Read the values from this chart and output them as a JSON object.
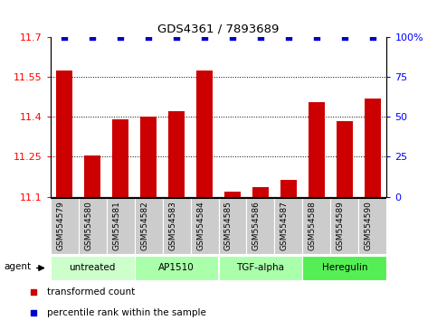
{
  "title": "GDS4361 / 7893689",
  "samples": [
    "GSM554579",
    "GSM554580",
    "GSM554581",
    "GSM554582",
    "GSM554583",
    "GSM554584",
    "GSM554585",
    "GSM554586",
    "GSM554587",
    "GSM554588",
    "GSM554589",
    "GSM554590"
  ],
  "bar_values": [
    11.575,
    11.255,
    11.39,
    11.4,
    11.42,
    11.575,
    11.12,
    11.135,
    11.165,
    11.455,
    11.385,
    11.47
  ],
  "percentile_values": [
    100,
    100,
    100,
    100,
    100,
    100,
    100,
    100,
    100,
    100,
    100,
    100
  ],
  "bar_color": "#cc0000",
  "percentile_color": "#0000cc",
  "ylim_left": [
    11.1,
    11.7
  ],
  "ylim_right": [
    0,
    100
  ],
  "yticks_left": [
    11.1,
    11.25,
    11.4,
    11.55,
    11.7
  ],
  "ytick_labels_left": [
    "11.1",
    "11.25",
    "11.4",
    "11.55",
    "11.7"
  ],
  "yticks_right": [
    0,
    25,
    50,
    75,
    100
  ],
  "ytick_labels_right": [
    "0",
    "25",
    "50",
    "75",
    "100%"
  ],
  "groups": [
    {
      "label": "untreated",
      "start": 0,
      "end": 3,
      "color": "#ccffcc"
    },
    {
      "label": "AP1510",
      "start": 3,
      "end": 6,
      "color": "#aaffaa"
    },
    {
      "label": "TGF-alpha",
      "start": 6,
      "end": 9,
      "color": "#aaffaa"
    },
    {
      "label": "Heregulin",
      "start": 9,
      "end": 12,
      "color": "#55ee55"
    }
  ],
  "agent_label": "agent",
  "legend_red": "transformed count",
  "legend_blue": "percentile rank within the sample",
  "tick_bg_color": "#cccccc",
  "bar_width": 0.6
}
